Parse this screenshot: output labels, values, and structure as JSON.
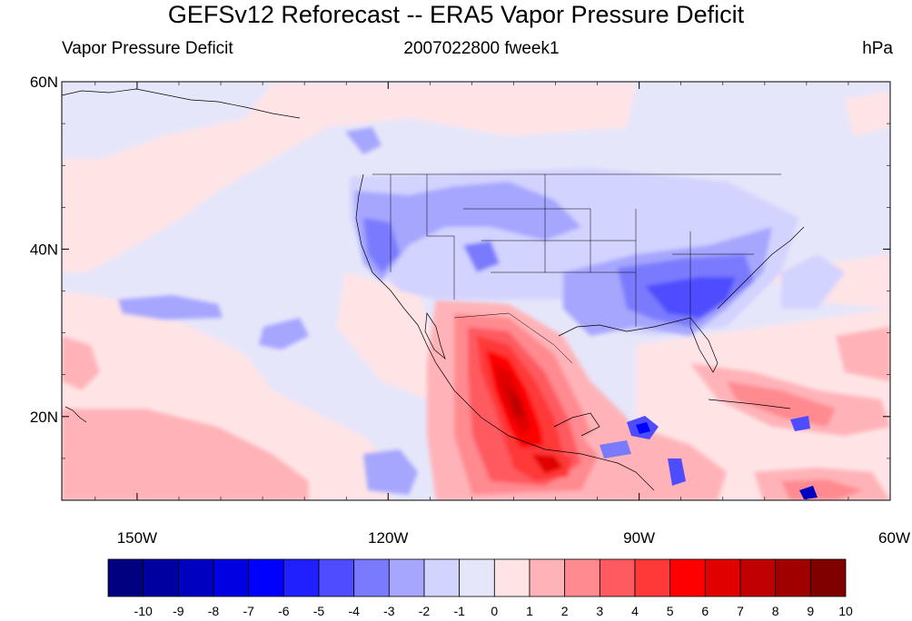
{
  "title": "GEFSv12 Reforecast -- ERA5 Vapor Pressure Deficit",
  "left_subtitle": "Vapor Pressure Deficit",
  "center_subtitle": "2007022800 fweek1",
  "right_subtitle": "hPa",
  "map": {
    "lon_range": [
      -159,
      -60
    ],
    "lat_range": [
      10,
      60
    ],
    "lat_ticks": [
      {
        "value": 60,
        "label": "60N"
      },
      {
        "value": 40,
        "label": "40N"
      },
      {
        "value": 20,
        "label": "20N"
      }
    ],
    "lon_ticks": [
      {
        "value": -150,
        "label": "150W"
      },
      {
        "value": -120,
        "label": "120W"
      },
      {
        "value": -90,
        "label": "90W"
      },
      {
        "value": -60,
        "label": "60W"
      }
    ],
    "background_color": "#e6e6fa"
  },
  "colorbar": {
    "labels": [
      "-10",
      "-9",
      "-8",
      "-7",
      "-6",
      "-5",
      "-4",
      "-3",
      "-2",
      "-1",
      "0",
      "1",
      "2",
      "3",
      "4",
      "5",
      "6",
      "7",
      "8",
      "9",
      "10"
    ],
    "colors": [
      "#000080",
      "#0000a0",
      "#0000c0",
      "#0000e0",
      "#0000ff",
      "#2020ff",
      "#4d4dff",
      "#7a7aff",
      "#a6a6ff",
      "#d3d3ff",
      "#e6e6fa",
      "#ffe4e6",
      "#ffb3b8",
      "#ff8a90",
      "#ff5a60",
      "#ff3838",
      "#ff0000",
      "#e00000",
      "#c00000",
      "#a00000",
      "#800000"
    ]
  }
}
